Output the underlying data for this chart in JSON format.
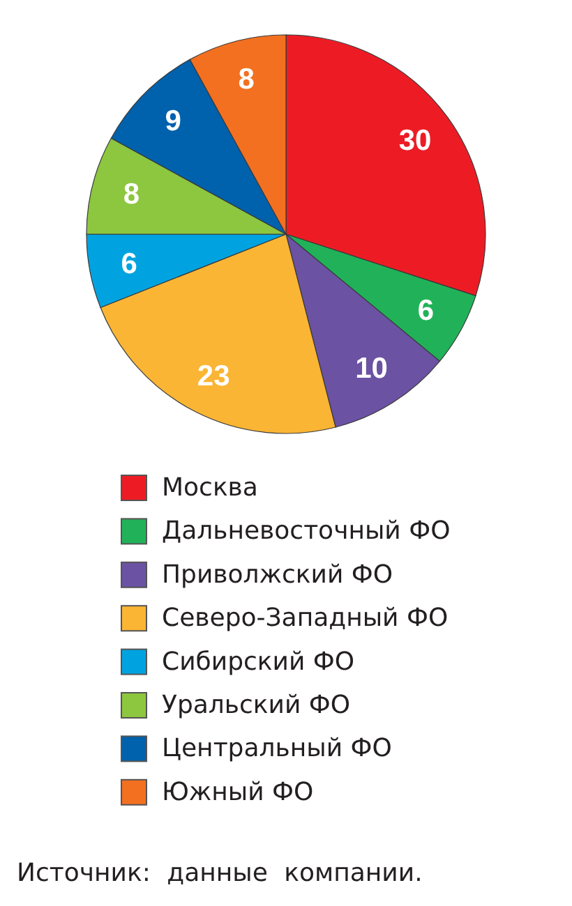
{
  "chart_data": {
    "type": "pie",
    "categories": [
      "Москва",
      "Дальневосточный ФО",
      "Приволжский ФО",
      "Северо-Западный ФО",
      "Сибирский ФО",
      "Уральский ФО",
      "Центральный ФО",
      "Южный ФО"
    ],
    "values": [
      30,
      6,
      10,
      23,
      6,
      8,
      9,
      8
    ],
    "colors": [
      "#ed1c24",
      "#21b259",
      "#6b52a3",
      "#fbb534",
      "#00a3e0",
      "#8dc63f",
      "#0061ad",
      "#f37021"
    ],
    "data_labels": true,
    "legend": "bottom",
    "annotations": [
      "Источник: данные компании."
    ]
  }
}
